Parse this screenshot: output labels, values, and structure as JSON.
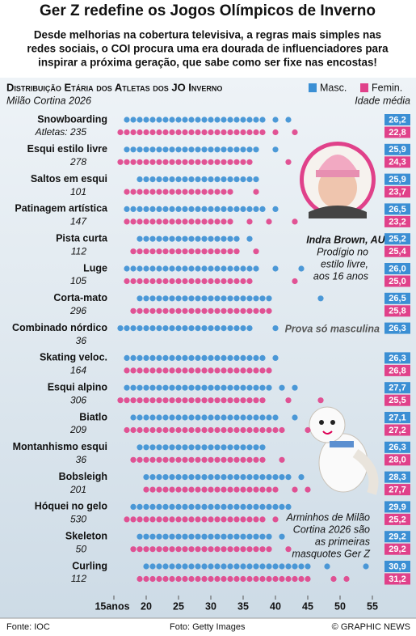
{
  "chart_data": {
    "type": "dot-strip",
    "title": "Ger Z redefine os Jogos Olímpicos de Inverno",
    "subtitle": [
      "Desde melhorias na cobertura televisiva, a regras mais simples nas",
      "redes sociais, o COI procura uma era dourada de influenciadores para",
      "inspirar a próxima geração, que sabe como ser fixe nas encostas!"
    ],
    "chart_title": "Distribuição Etária dos Atletas dos JO Inverno",
    "chart_subtitle": "Milão Cortina 2026",
    "average_heading": "Idade média",
    "categories": [
      "Snowboarding",
      "Esqui estilo livre",
      "Saltos em esqui",
      "Patinagem artística",
      "Pista curta",
      "Luge",
      "Corta-mato",
      "Combinado nórdico",
      "Skating veloc.",
      "Esqui alpino",
      "Biatlo",
      "Montanhismo esqui",
      "Bobsleigh",
      "Hóquei no gelo",
      "Skeleton",
      "Curling"
    ],
    "counts": [
      235,
      278,
      101,
      147,
      112,
      105,
      296,
      36,
      164,
      306,
      209,
      36,
      201,
      530,
      50,
      112
    ],
    "count_labels": [
      "Atletas: 235",
      "278",
      "101",
      "147",
      "112",
      "105",
      "296",
      "36",
      "164",
      "306",
      "209",
      "36",
      "201",
      "530",
      "50",
      "112"
    ],
    "series": [
      {
        "name": "Masc.",
        "color": "#3b8fd4",
        "values": [
          [
            17,
            18,
            19,
            20,
            21,
            22,
            23,
            24,
            25,
            26,
            27,
            28,
            29,
            30,
            31,
            32,
            33,
            34,
            35,
            36,
            37,
            38,
            40,
            42
          ],
          [
            17,
            18,
            19,
            20,
            21,
            22,
            23,
            24,
            25,
            26,
            27,
            28,
            29,
            30,
            31,
            32,
            33,
            34,
            35,
            36,
            37,
            40
          ],
          [
            19,
            20,
            21,
            22,
            23,
            24,
            25,
            26,
            27,
            28,
            29,
            30,
            31,
            32,
            33,
            34,
            35,
            36,
            37
          ],
          [
            17,
            18,
            19,
            20,
            21,
            22,
            23,
            24,
            25,
            26,
            27,
            28,
            29,
            30,
            31,
            32,
            33,
            34,
            35,
            36,
            37,
            38,
            40
          ],
          [
            19,
            20,
            21,
            22,
            23,
            24,
            25,
            26,
            27,
            28,
            29,
            30,
            31,
            32,
            33,
            34,
            36
          ],
          [
            17,
            18,
            19,
            20,
            21,
            22,
            23,
            24,
            25,
            26,
            27,
            28,
            29,
            30,
            31,
            32,
            33,
            34,
            35,
            36,
            37,
            40,
            44
          ],
          [
            19,
            20,
            21,
            22,
            23,
            24,
            25,
            26,
            27,
            28,
            29,
            30,
            31,
            32,
            33,
            34,
            35,
            36,
            37,
            38,
            39,
            47
          ],
          [
            16,
            17,
            18,
            19,
            20,
            21,
            22,
            23,
            24,
            25,
            26,
            27,
            28,
            29,
            30,
            31,
            32,
            33,
            34,
            35,
            36,
            40
          ],
          [
            17,
            18,
            19,
            20,
            21,
            22,
            23,
            24,
            25,
            26,
            27,
            28,
            29,
            30,
            31,
            32,
            33,
            34,
            35,
            36,
            37,
            38,
            40
          ],
          [
            17,
            18,
            19,
            20,
            21,
            22,
            23,
            24,
            25,
            26,
            27,
            28,
            29,
            30,
            31,
            32,
            33,
            34,
            35,
            36,
            37,
            38,
            39,
            41,
            43
          ],
          [
            18,
            19,
            20,
            21,
            22,
            23,
            24,
            25,
            26,
            27,
            28,
            29,
            30,
            31,
            32,
            33,
            34,
            35,
            36,
            37,
            38,
            39,
            40,
            43
          ],
          [
            19,
            20,
            21,
            22,
            23,
            24,
            25,
            26,
            27,
            28,
            29,
            30,
            31,
            32,
            33,
            34,
            35,
            36,
            37,
            38
          ],
          [
            20,
            21,
            22,
            23,
            24,
            25,
            26,
            27,
            28,
            29,
            30,
            31,
            32,
            33,
            34,
            35,
            36,
            37,
            38,
            39,
            40,
            41,
            42,
            44
          ],
          [
            18,
            19,
            20,
            21,
            22,
            23,
            24,
            25,
            26,
            27,
            28,
            29,
            30,
            31,
            32,
            33,
            34,
            35,
            36,
            37,
            38,
            39,
            40,
            41,
            42
          ],
          [
            19,
            20,
            21,
            22,
            23,
            24,
            25,
            26,
            27,
            28,
            29,
            30,
            31,
            32,
            33,
            34,
            35,
            36,
            37,
            38,
            39,
            41
          ],
          [
            20,
            21,
            22,
            23,
            24,
            25,
            26,
            27,
            28,
            29,
            30,
            31,
            32,
            33,
            34,
            35,
            36,
            37,
            38,
            39,
            40,
            41,
            42,
            43,
            44,
            45,
            48,
            54
          ]
        ],
        "averages": [
          26.2,
          25.9,
          25.9,
          26.5,
          25.2,
          26.0,
          26.5,
          26.3,
          26.3,
          27.7,
          27.1,
          26.3,
          28.3,
          29.9,
          29.2,
          30.9
        ],
        "average_labels": [
          "26,2",
          "25,9",
          "25,9",
          "26,5",
          "25,2",
          "26,0",
          "26,5",
          "26,3",
          "26,3",
          "27,7",
          "27,1",
          "26,3",
          "28,3",
          "29,9",
          "29,2",
          "30,9"
        ]
      },
      {
        "name": "Femin.",
        "color": "#e0418a",
        "values": [
          [
            16,
            17,
            18,
            19,
            20,
            21,
            22,
            23,
            24,
            25,
            26,
            27,
            28,
            29,
            30,
            31,
            32,
            33,
            34,
            35,
            36,
            37,
            38,
            40,
            43
          ],
          [
            16,
            17,
            18,
            19,
            20,
            21,
            22,
            23,
            24,
            25,
            26,
            27,
            28,
            29,
            30,
            31,
            32,
            33,
            34,
            35,
            36,
            42
          ],
          [
            17,
            18,
            19,
            20,
            21,
            22,
            23,
            24,
            25,
            26,
            27,
            28,
            29,
            30,
            31,
            32,
            33,
            37
          ],
          [
            17,
            18,
            19,
            20,
            21,
            22,
            23,
            24,
            25,
            26,
            27,
            28,
            29,
            30,
            31,
            32,
            33,
            36,
            39,
            43
          ],
          [
            18,
            19,
            20,
            21,
            22,
            23,
            24,
            25,
            26,
            27,
            28,
            29,
            30,
            31,
            32,
            33,
            34,
            37
          ],
          [
            17,
            18,
            19,
            20,
            21,
            22,
            23,
            24,
            25,
            26,
            27,
            28,
            29,
            30,
            31,
            32,
            33,
            34,
            35,
            36,
            43
          ],
          [
            18,
            19,
            20,
            21,
            22,
            23,
            24,
            25,
            26,
            27,
            28,
            29,
            30,
            31,
            32,
            33,
            34,
            35,
            36,
            37,
            38,
            39
          ],
          [],
          [
            17,
            18,
            19,
            20,
            21,
            22,
            23,
            24,
            25,
            26,
            27,
            28,
            29,
            30,
            31,
            32,
            33,
            34,
            35,
            36,
            37,
            38,
            39
          ],
          [
            16,
            17,
            18,
            19,
            20,
            21,
            22,
            23,
            24,
            25,
            26,
            27,
            28,
            29,
            30,
            31,
            32,
            33,
            34,
            35,
            36,
            37,
            38,
            42,
            47
          ],
          [
            17,
            18,
            19,
            20,
            21,
            22,
            23,
            24,
            25,
            26,
            27,
            28,
            29,
            30,
            31,
            32,
            33,
            34,
            35,
            36,
            37,
            38,
            39,
            40,
            41,
            45
          ],
          [
            18,
            19,
            20,
            21,
            22,
            23,
            24,
            25,
            26,
            27,
            28,
            29,
            30,
            31,
            32,
            33,
            34,
            35,
            36,
            37,
            38,
            41
          ],
          [
            20,
            21,
            22,
            23,
            24,
            25,
            26,
            27,
            28,
            29,
            30,
            31,
            32,
            33,
            34,
            35,
            36,
            37,
            38,
            39,
            40,
            43,
            45
          ],
          [
            17,
            18,
            19,
            20,
            21,
            22,
            23,
            24,
            25,
            26,
            27,
            28,
            29,
            30,
            31,
            32,
            33,
            34,
            35,
            36,
            37,
            38,
            40
          ],
          [
            18,
            19,
            20,
            21,
            22,
            23,
            24,
            25,
            26,
            27,
            28,
            29,
            30,
            31,
            32,
            33,
            34,
            35,
            36,
            37,
            38,
            39,
            42
          ],
          [
            19,
            20,
            21,
            22,
            23,
            24,
            25,
            26,
            27,
            28,
            29,
            30,
            31,
            32,
            33,
            34,
            35,
            36,
            37,
            38,
            39,
            40,
            41,
            42,
            43,
            44,
            45,
            49,
            51
          ]
        ],
        "averages": [
          22.8,
          24.3,
          23.7,
          23.2,
          25.4,
          25.0,
          25.8,
          null,
          26.8,
          25.5,
          27.2,
          28.0,
          27.7,
          25.2,
          29.2,
          31.2
        ],
        "average_labels": [
          "22,8",
          "24,3",
          "23,7",
          "23,2",
          "25,4",
          "25,0",
          "25,8",
          null,
          "26,8",
          "25,5",
          "27,2",
          "28,0",
          "27,7",
          "25,2",
          "29,2",
          "31,2"
        ]
      }
    ],
    "xlim": [
      12,
      58
    ],
    "xticks": [
      {
        "value": 15,
        "label": "15anos"
      },
      20,
      25,
      30,
      35,
      40,
      45,
      50,
      55
    ],
    "annotations": {
      "photo_name": "Indra Brown, AUS",
      "photo_caption": [
        "Prodígio no",
        "estilo livre,",
        "aos 16 anos"
      ],
      "men_only": "Prova só masculina",
      "mascot_caption": [
        "Arminhos de Milão",
        "Cortina 2026 são",
        "as primeiras",
        "masquotes Ger Z"
      ]
    },
    "footer": {
      "source": "Fonte: IOC",
      "photo": "Foto: Getty Images",
      "credit": "© GRAPHIC NEWS"
    }
  }
}
